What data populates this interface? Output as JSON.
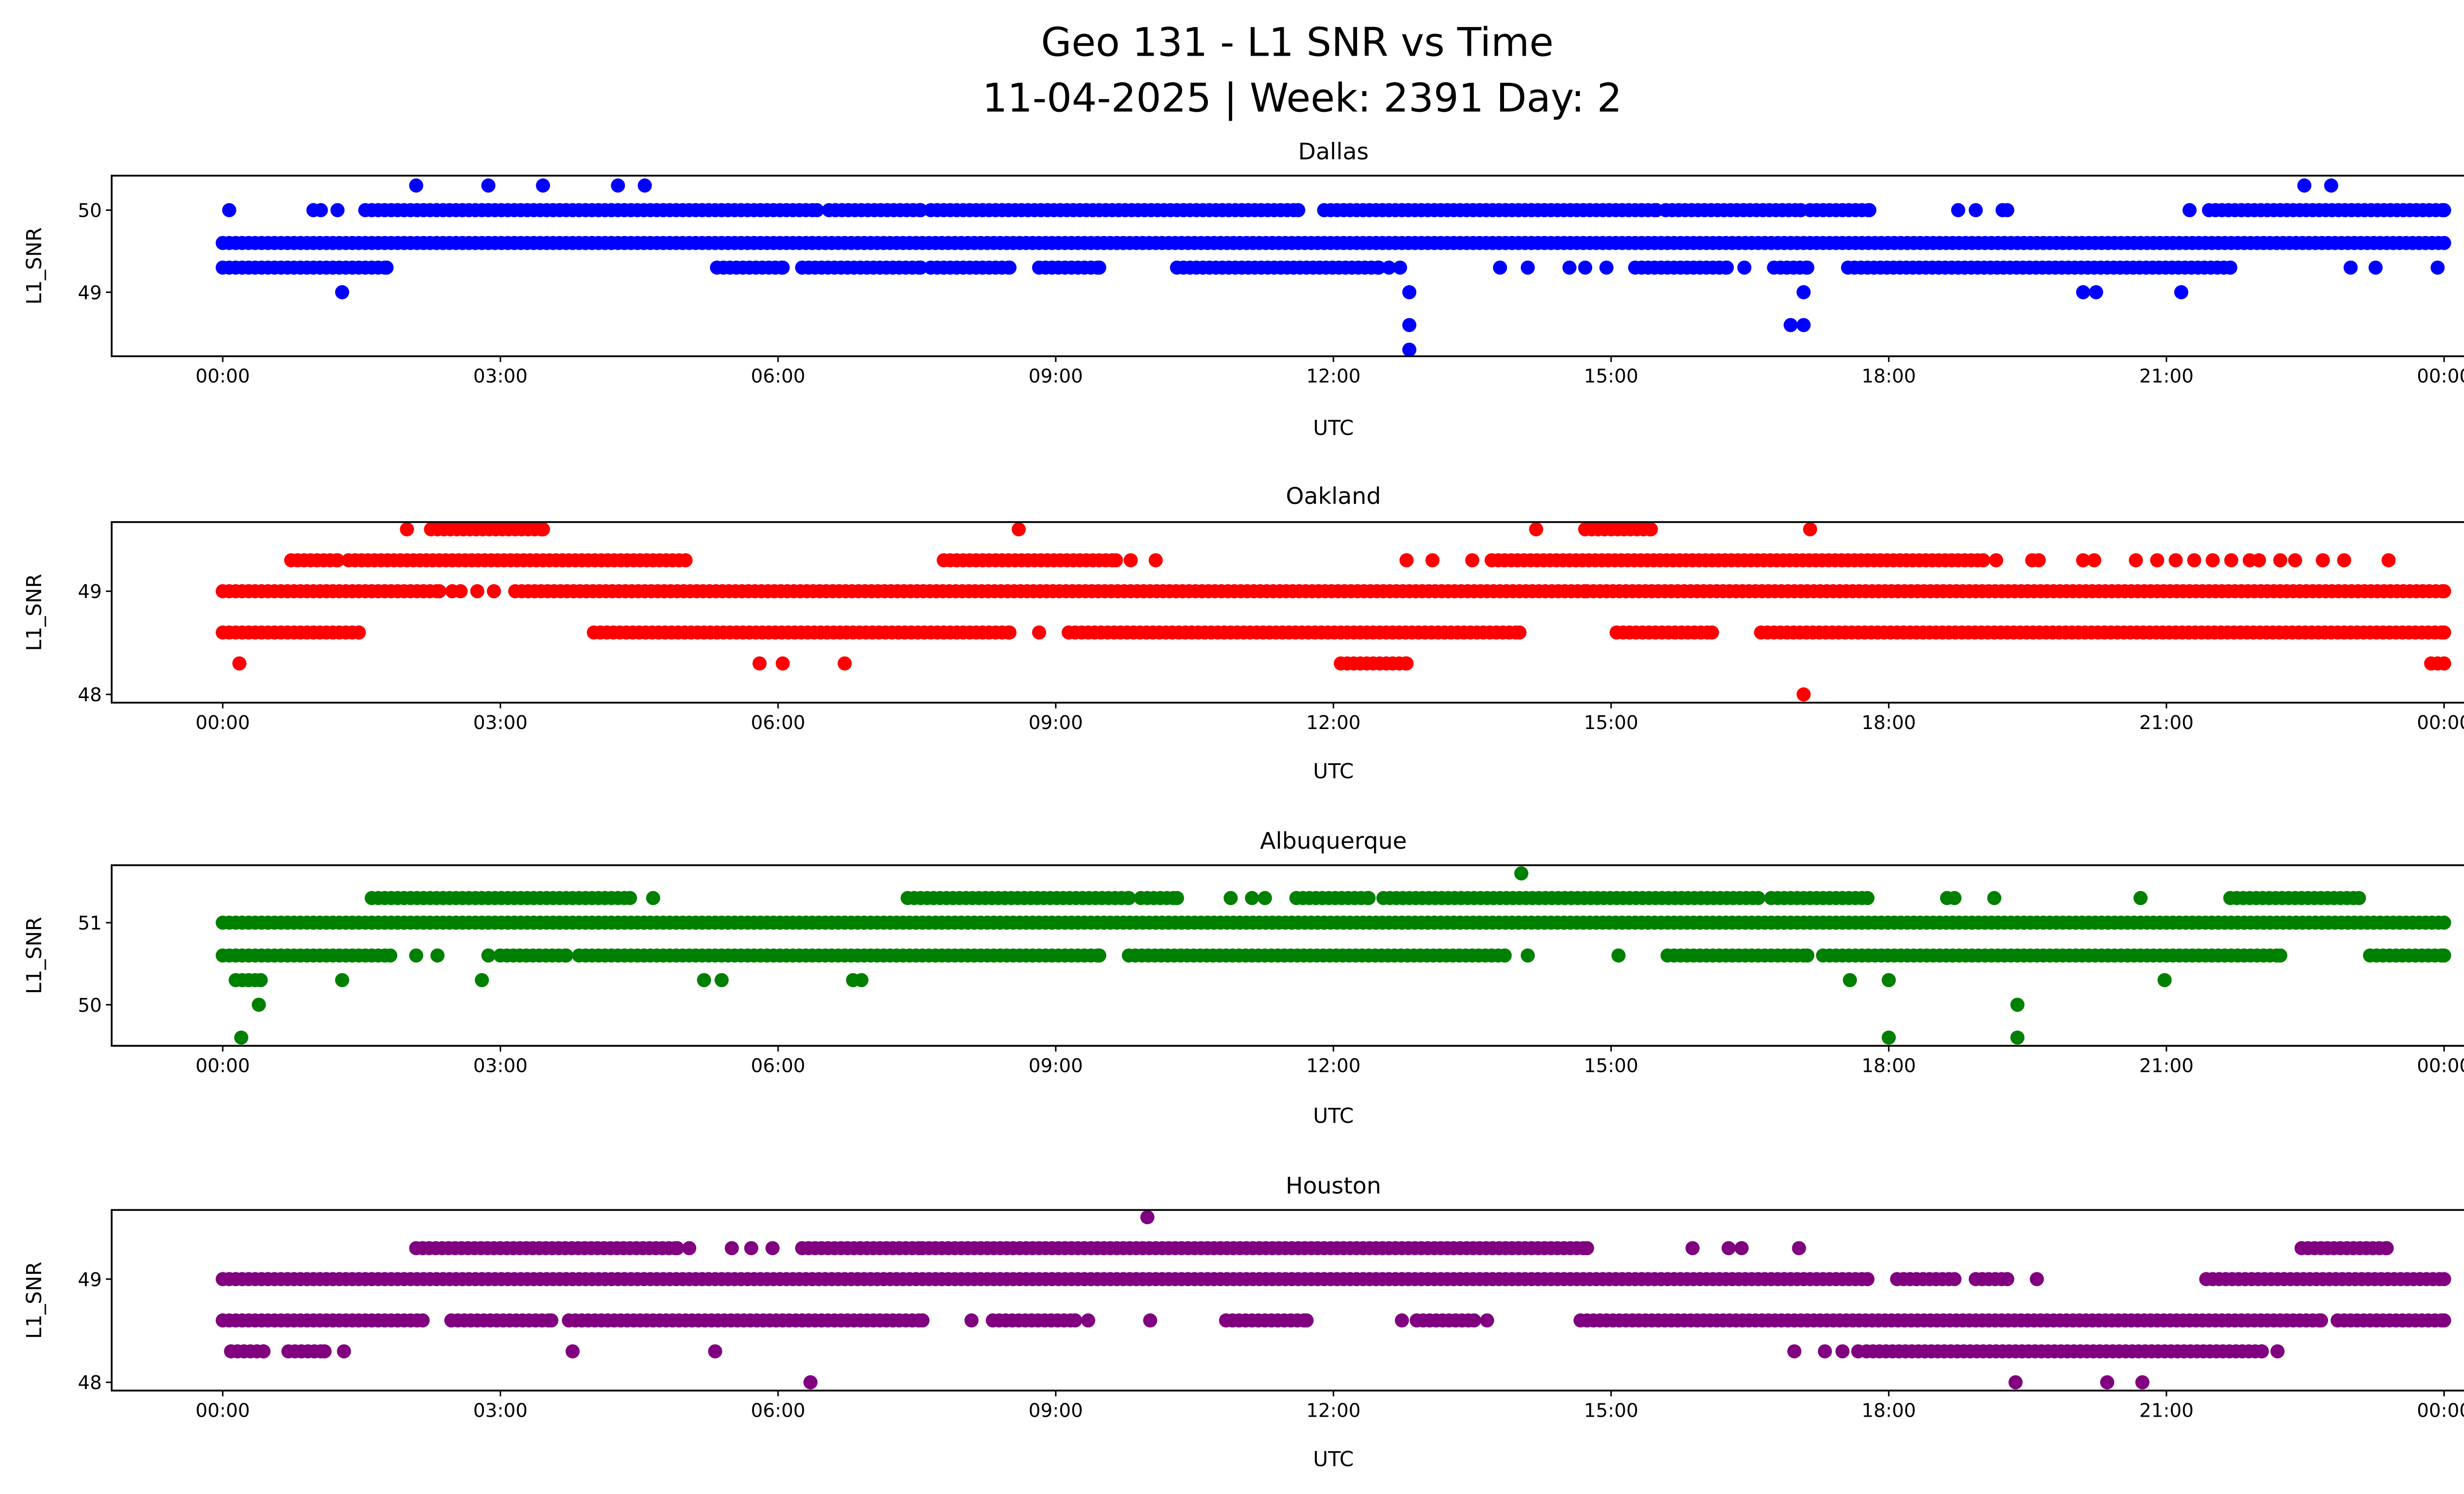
{
  "chart_data": {
    "type": "scatter",
    "title": "Geo 131 - L1 SNR vs Time",
    "subtitle": "11-04-2025 | Week: 2391 Day: 2",
    "xlabel": "UTC",
    "ylabel": "L1_SNR",
    "x_unit": "hours since 00:00 UTC",
    "x_ticks": [
      0,
      3,
      6,
      9,
      12,
      15,
      18,
      21,
      24
    ],
    "x_tick_labels": [
      "00:00",
      "03:00",
      "06:00",
      "09:00",
      "12:00",
      "15:00",
      "18:00",
      "21:00",
      "00:00"
    ],
    "xlim": [
      -1.2,
      25.2
    ],
    "grid": false,
    "legend": "none",
    "panels": [
      {
        "name": "Dallas",
        "color": "#0000ff",
        "ylim": [
          48.22,
          50.42
        ],
        "y_ticks": [
          49,
          50
        ],
        "y_tick_labels": [
          "49",
          "50"
        ],
        "levels": [
          {
            "value": 50.3,
            "segments": [],
            "points": [
              2.09,
              2.87,
              3.46,
              4.27,
              4.56,
              22.49,
              22.78
            ]
          },
          {
            "value": 50.0,
            "segments": [
              [
                1.54,
                6.42
              ],
              [
                6.55,
                7.54
              ],
              [
                7.65,
                11.62
              ],
              [
                11.9,
                15.49
              ],
              [
                15.59,
                17.05
              ],
              [
                17.15,
                17.79
              ],
              [
                21.46,
                24.0
              ]
            ],
            "points": [
              0.07,
              0.98,
              1.06,
              1.24,
              18.75,
              18.94,
              19.23,
              19.28,
              21.25
            ]
          },
          {
            "value": 49.6,
            "segments": [
              [
                0.0,
                24.0
              ]
            ],
            "points": []
          },
          {
            "value": 49.3,
            "segments": [
              [
                0.0,
                1.77
              ],
              [
                5.34,
                6.05
              ],
              [
                6.26,
                7.54
              ],
              [
                7.65,
                8.5
              ],
              [
                8.82,
                9.47
              ],
              [
                10.31,
                12.49
              ],
              [
                15.26,
                16.25
              ],
              [
                16.76,
                17.12
              ],
              [
                17.56,
                21.69
              ]
            ],
            "points": [
              12.6,
              12.72,
              13.8,
              14.1,
              14.55,
              14.72,
              14.95,
              16.44,
              22.99,
              23.26,
              23.93
            ]
          },
          {
            "value": 49.0,
            "segments": [],
            "points": [
              1.29,
              12.82,
              17.08,
              20.1,
              20.24,
              21.16
            ]
          },
          {
            "value": 48.6,
            "segments": [],
            "points": [
              12.82,
              16.94,
              17.08
            ]
          },
          {
            "value": 48.3,
            "segments": [],
            "points": [
              12.82
            ]
          }
        ]
      },
      {
        "name": "Oakland",
        "color": "#ff0000",
        "ylim": [
          47.92,
          49.67
        ],
        "y_ticks": [
          48,
          49
        ],
        "y_tick_labels": [
          "48",
          "49"
        ],
        "levels": [
          {
            "value": 49.6,
            "segments": [
              [
                2.25,
                3.46
              ],
              [
                14.72,
                15.43
              ]
            ],
            "points": [
              1.99,
              8.6,
              14.19,
              17.15
            ]
          },
          {
            "value": 49.3,
            "segments": [
              [
                0.74,
                1.24
              ],
              [
                1.36,
                5.0
              ],
              [
                7.79,
                9.65
              ],
              [
                13.71,
                19.02
              ]
            ],
            "points": [
              9.81,
              10.08,
              12.79,
              13.07,
              13.5,
              19.16,
              19.55,
              19.62,
              20.1,
              20.22,
              20.67,
              20.9,
              21.1,
              21.3,
              21.5,
              21.7,
              21.9,
              22.0,
              22.23,
              22.39,
              22.69,
              22.92,
              23.4
            ]
          },
          {
            "value": 49.0,
            "segments": [
              [
                0.0,
                2.34
              ],
              [
                3.16,
                14.74
              ],
              [
                14.81,
                24.0
              ]
            ],
            "points": [
              2.48,
              2.57,
              2.75,
              2.93
            ]
          },
          {
            "value": 48.6,
            "segments": [
              [
                0.0,
                1.47
              ],
              [
                4.01,
                8.5
              ],
              [
                9.14,
                14.01
              ],
              [
                15.06,
                16.09
              ],
              [
                16.62,
                24.0
              ]
            ],
            "points": [
              8.82
            ]
          },
          {
            "value": 48.3,
            "segments": [
              [
                12.08,
                12.79
              ],
              [
                23.86,
                24.0
              ]
            ],
            "points": [
              0.18,
              5.8,
              6.05,
              6.72
            ]
          },
          {
            "value": 48.0,
            "segments": [],
            "points": [
              17.08
            ]
          }
        ]
      },
      {
        "name": "Albuquerque",
        "color": "#008000",
        "ylim": [
          49.5,
          51.7
        ],
        "y_ticks": [
          50,
          51
        ],
        "y_tick_labels": [
          "50",
          "51"
        ],
        "levels": [
          {
            "value": 51.6,
            "segments": [],
            "points": [
              14.03
            ]
          },
          {
            "value": 51.3,
            "segments": [
              [
                1.61,
                4.4
              ],
              [
                7.4,
                9.79
              ],
              [
                9.92,
                10.31
              ],
              [
                11.6,
                12.38
              ],
              [
                12.54,
                16.59
              ],
              [
                16.73,
                17.77
              ],
              [
                21.69,
                23.08
              ]
            ],
            "points": [
              4.65,
              10.89,
              11.12,
              11.26,
              18.63,
              18.71,
              19.14,
              20.72
            ]
          },
          {
            "value": 51.0,
            "segments": [
              [
                0.0,
                24.0
              ]
            ],
            "points": []
          },
          {
            "value": 50.6,
            "segments": [
              [
                0.0,
                1.81
              ],
              [
                3.0,
                3.71
              ],
              [
                3.85,
                9.47
              ],
              [
                9.79,
                13.85
              ],
              [
                15.61,
                17.12
              ],
              [
                17.29,
                22.23
              ],
              [
                23.2,
                24.0
              ]
            ],
            "points": [
              2.09,
              2.32,
              2.87,
              14.1,
              15.08
            ]
          },
          {
            "value": 50.3,
            "segments": [
              [
                0.14,
                0.41
              ]
            ],
            "points": [
              1.29,
              2.8,
              5.2,
              5.39,
              6.81,
              6.9,
              17.58,
              18.0,
              20.98
            ]
          },
          {
            "value": 50.0,
            "segments": [],
            "points": [
              0.39,
              19.39
            ]
          },
          {
            "value": 49.6,
            "segments": [],
            "points": [
              0.2,
              18.0,
              19.39
            ]
          }
        ]
      },
      {
        "name": "Houston",
        "color": "#800080",
        "ylim": [
          47.92,
          49.67
        ],
        "y_ticks": [
          48,
          49
        ],
        "y_tick_labels": [
          "48",
          "49"
        ],
        "levels": [
          {
            "value": 49.6,
            "segments": [],
            "points": [
              9.99
            ]
          },
          {
            "value": 49.3,
            "segments": [
              [
                2.09,
                4.91
              ],
              [
                6.26,
                7.56
              ],
              [
                7.63,
                14.74
              ],
              [
                22.46,
                23.38
              ]
            ],
            "points": [
              5.04,
              5.5,
              5.71,
              5.94,
              15.88,
              16.27,
              16.41,
              17.03
            ]
          },
          {
            "value": 49.0,
            "segments": [
              [
                0.0,
                17.77
              ],
              [
                18.09,
                18.71
              ],
              [
                18.94,
                19.28
              ],
              [
                21.43,
                24.0
              ]
            ],
            "points": [
              19.6
            ]
          },
          {
            "value": 48.6,
            "segments": [
              [
                0.0,
                2.16
              ],
              [
                2.47,
                3.55
              ],
              [
                3.74,
                7.56
              ],
              [
                8.32,
                9.21
              ],
              [
                10.84,
                11.71
              ],
              [
                12.9,
                13.52
              ],
              [
                14.67,
                22.67
              ],
              [
                22.85,
                24.0
              ]
            ],
            "points": [
              8.09,
              9.35,
              10.02,
              12.74,
              13.66
            ]
          },
          {
            "value": 48.3,
            "segments": [
              [
                0.09,
                0.44
              ],
              [
                0.71,
                1.1
              ],
              [
                17.76,
                22.03
              ]
            ],
            "points": [
              1.31,
              3.78,
              5.32,
              16.98,
              17.31,
              17.5,
              17.67,
              22.2
            ]
          },
          {
            "value": 48.0,
            "segments": [],
            "points": [
              6.35,
              19.37,
              20.36,
              20.74
            ]
          }
        ]
      }
    ]
  }
}
